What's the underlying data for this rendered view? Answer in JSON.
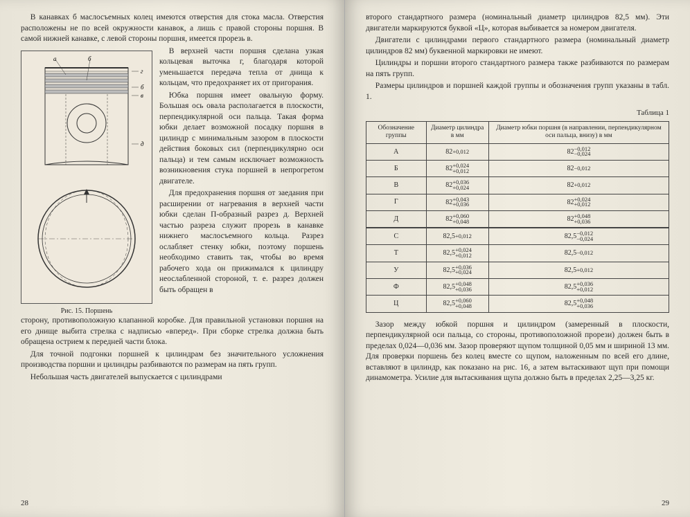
{
  "left": {
    "p1": "В канавках б маслосъемных колец имеются отверстия для стока масла. Отверстия расположены не по всей окружности канавок, а лишь с правой стороны поршня. В самой нижней канавке, с левой стороны поршня, имеется прорезь в.",
    "p2": "В верхней части поршня сделана узкая кольцевая выточка г, благодаря которой уменьшается передача тепла от днища к кольцам, что предохраняет их от пригорания.",
    "p3": "Юбка поршня имеет овальную форму. Большая ось овала располагается в плоскости, перпендикулярной оси пальца. Такая форма юбки делает возможной посадку поршня в цилиндр с минимальным зазором в плоскости действия боковых сил (перпендикулярно оси пальца) и тем самым исключает возможность возникновения стука поршней в непрогретом двигателе.",
    "p4": "Для предохранения поршня от заедания при расширении от нагревания в верхней части юбки сделан П-образный разрез д. Верхней частью разреза служит прорезь в канавке нижнего маслосъемного кольца. Разрез ослабляет стенку юбки, поэтому поршень необходимо ставить так, чтобы во время рабочего хода он прижимался к цилиндру неослабленной стороной, т. е. разрез должен быть обращен в",
    "p5": "сторону, противоположную клапанной коробке. Для правильной установки поршня на его днище выбита стрелка с надписью «вперед». При сборке стрелка должна быть обращена острием к передней части блока.",
    "p6": "Для точной подгонки поршней к цилиндрам без значительного усложнения производства поршни и цилиндры разбиваются по размерам на пять групп.",
    "p7": "Небольшая часть двигателей выпускается с цилиндрами",
    "fig_caption": "Рис. 15. Поршень",
    "fig_labels": {
      "a": "а",
      "b": "б",
      "v": "в",
      "g": "г",
      "d": "д"
    },
    "page_num": "28"
  },
  "right": {
    "p1": "второго стандартного размера (номинальный диаметр цилиндров 82,5 мм). Эти двигатели маркируются буквой «Ц», которая выбивается за номером двигателя.",
    "p2": "Двигатели с цилиндрами первого стандартного размера (номинальный диаметр цилиндров 82 мм) буквенной маркировки не имеют.",
    "p3": "Цилиндры и поршни второго стандартного размера также разбиваются по размерам на пять групп.",
    "p4": "Размеры цилиндров и поршней каждой группы и обозначения групп указаны в табл. 1.",
    "table_title": "Таблица 1",
    "headers": {
      "h1": "Обозначение группы",
      "h2": "Диаметр цилиндра в мм",
      "h3": "Диаметр юбки поршня (в направлении, перпендикулярном оси пальца, внизу) в мм"
    },
    "rows": [
      {
        "g": "А",
        "cb": "82",
        "ct": "+0,012",
        "pb": "82",
        "pt": "−0,024 / −0,012"
      },
      {
        "g": "Б",
        "cb": "82",
        "ct": "+0,012 / +0,024",
        "pb": "82",
        "pt": "−0,012"
      },
      {
        "g": "В",
        "cb": "82",
        "ct": "+0,024 / +0,036",
        "pb": "82",
        "pt": "+0,012"
      },
      {
        "g": "Г",
        "cb": "82",
        "ct": "+0,036 / +0,043",
        "pb": "82",
        "pt": "+0,012 / +0,024"
      },
      {
        "g": "Д",
        "cb": "82",
        "ct": "+0,048 / +0,060",
        "pb": "82",
        "pt": "+0,036 / +0,048"
      },
      {
        "g": "С",
        "cb": "82,5",
        "ct": "+0,012",
        "pb": "82,5",
        "pt": "−0,024 / −0,012"
      },
      {
        "g": "Т",
        "cb": "82,5",
        "ct": "+0,012 / +0,024",
        "pb": "82,5",
        "pt": "−0,012"
      },
      {
        "g": "У",
        "cb": "82,5",
        "ct": "+0,024 / +0,036",
        "pb": "82,5",
        "pt": "+0,012"
      },
      {
        "g": "Ф",
        "cb": "82,5",
        "ct": "+0,036 / +0,048",
        "pb": "82,5",
        "pt": "+0,012 / +0,036"
      },
      {
        "g": "Ц",
        "cb": "82,5",
        "ct": "+0,048 / +0,060",
        "pb": "82,5",
        "pt": "+0,036 / +0,048"
      }
    ],
    "p5": "Зазор между юбкой поршня и цилиндром (замеренный в плоскости, перпендикулярной оси пальца, со стороны, противоположной прорези) должен быть в пределах 0,024—0,036 мм. Зазор проверяют щупом толщиной 0,05 мм и шириной 13 мм. Для проверки поршень без колец вместе со щупом, наложенным по всей его длине, вставляют в цилиндр, как показано на рис. 16, а затем вытаскивают щуп при помощи динамометра. Усилие для вытаскивания щупа должно быть в пределах 2,25—3,25 кг.",
    "page_num": "29"
  },
  "style": {
    "bg": "#e8e4d8",
    "text_color": "#2a2a2a",
    "border_color": "#444",
    "body_fontsize": 11.5,
    "table_fontsize": 10
  }
}
